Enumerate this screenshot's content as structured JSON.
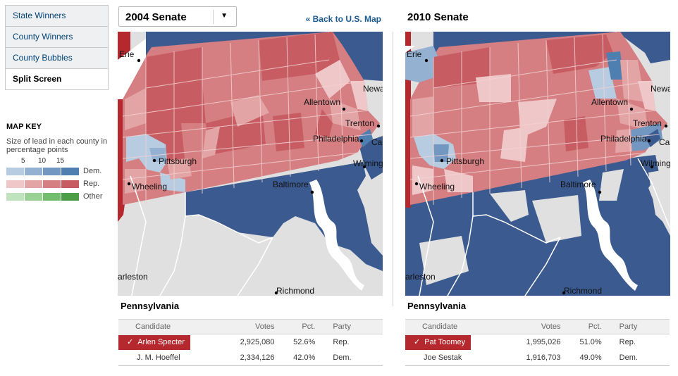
{
  "nav": {
    "items": [
      "State Winners",
      "County Winners",
      "County Bubbles",
      "Split Screen"
    ],
    "active": "Split Screen"
  },
  "key": {
    "title": "MAP KEY",
    "description": "Size of lead in each county in percentage points",
    "ticks": [
      "5",
      "10",
      "15"
    ],
    "rows": [
      {
        "label": "Dem.",
        "colors": [
          "#b7cbe1",
          "#94b1d1",
          "#7298c1",
          "#4f7fb0"
        ]
      },
      {
        "label": "Rep.",
        "colors": [
          "#f0c7c8",
          "#e3a4a6",
          "#d57f82",
          "#c75d62"
        ]
      },
      {
        "label": "Other",
        "colors": [
          "#bfe3bd",
          "#9ad296",
          "#73bd6e",
          "#4d9e48"
        ]
      }
    ]
  },
  "colors": {
    "dem": "#3b5b90",
    "rep": "#b5282e",
    "rep_light": "#d98285",
    "land": "#e0e0e0",
    "water": "#ffffff"
  },
  "panels": [
    {
      "title": "2004 Senate",
      "has_dropdown": true,
      "back_link": "« Back to U.S. Map",
      "state": "Pennsylvania",
      "columns": [
        "Candidate",
        "Votes",
        "Pct.",
        "Party"
      ],
      "rows": [
        {
          "candidate": "Arlen Specter",
          "votes": "2,925,080",
          "pct": "52.6%",
          "party": "Rep.",
          "winner": true
        },
        {
          "candidate": "J. M. Hoeffel",
          "votes": "2,334,126",
          "pct": "42.0%",
          "party": "Dem.",
          "winner": false
        }
      ],
      "cities": [
        "Erie",
        "Allentown",
        "Trenton",
        "Philadelphia",
        "Pittsburgh",
        "Wheeling",
        "Baltimore",
        "Newa",
        "Ca",
        "Wilming",
        "arleston",
        "Richmond"
      ]
    },
    {
      "title": "2010 Senate",
      "has_dropdown": false,
      "back_link": "",
      "state": "Pennsylvania",
      "columns": [
        "Candidate",
        "Votes",
        "Pct.",
        "Party"
      ],
      "rows": [
        {
          "candidate": "Pat Toomey",
          "votes": "1,995,026",
          "pct": "51.0%",
          "party": "Rep.",
          "winner": true
        },
        {
          "candidate": "Joe Sestak",
          "votes": "1,916,703",
          "pct": "49.0%",
          "party": "Dem.",
          "winner": false
        }
      ],
      "cities": [
        "Erie",
        "Allentown",
        "Trenton",
        "Philadelphia",
        "Pittsburgh",
        "Wheeling",
        "Baltimore",
        "Newa",
        "Ca",
        "Wilming",
        "arleston",
        "Richmond"
      ]
    }
  ]
}
